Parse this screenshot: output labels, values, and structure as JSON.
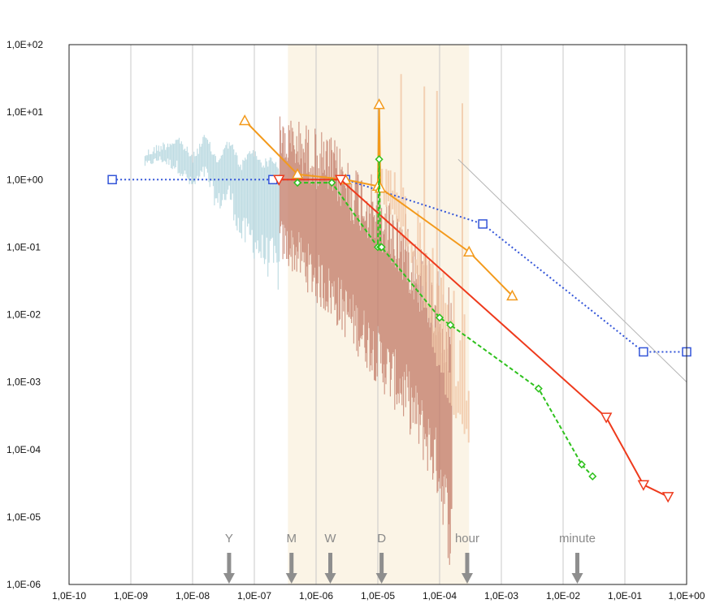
{
  "chart_data": {
    "type": "line",
    "title": "",
    "xlabel": "",
    "ylabel": "",
    "xscale": "log",
    "yscale": "log",
    "xlim": [
      1e-10,
      1
    ],
    "ylim": [
      1e-06,
      100
    ],
    "grid": {
      "x": true,
      "y": false
    },
    "legend": "none",
    "x_tick_labels": [
      "1,0E-10",
      "1,0E-09",
      "1,0E-08",
      "1,0E-07",
      "1,0E-06",
      "1,0E-05",
      "1,0E-04",
      "1,0E-03",
      "1,0E-02",
      "1,0E-01",
      "1,0E+00"
    ],
    "y_tick_labels": [
      "1,0E+02",
      "1,0E+01",
      "1,0E+00",
      "1,0E-01",
      "1,0E-02",
      "1,0E-03",
      "1,0E-04",
      "1,0E-05",
      "1,0E-06"
    ],
    "time_markers": [
      {
        "label": "Y",
        "x": 3.9e-08
      },
      {
        "label": "M",
        "x": 4e-07
      },
      {
        "label": "W",
        "x": 1.7e-06
      },
      {
        "label": "D",
        "x": 1.15e-05
      },
      {
        "label": "hour",
        "x": 0.00028
      },
      {
        "label": "minute",
        "x": 0.017
      }
    ],
    "shaded_bands": [
      {
        "x": [
          3.5e-07,
          0.0003
        ],
        "color": "#fbf4e6"
      }
    ],
    "reference_line": {
      "points": [
        [
          0.0002,
          2.0
        ],
        [
          1.0,
          0.001
        ]
      ],
      "color": "#b4b4b4"
    },
    "noise_traces": [
      {
        "color": "#a9d0da",
        "x_range": [
          1.7e-09,
          2.6e-07
        ],
        "upper": [
          [
            1.7e-09,
            2.8
          ],
          [
            3e-09,
            3.6
          ],
          [
            6e-09,
            4.6
          ],
          [
            1e-08,
            2.4
          ],
          [
            1.6e-08,
            5.0
          ],
          [
            2.5e-08,
            2.2
          ],
          [
            4e-08,
            4.4
          ],
          [
            6e-08,
            1.8
          ],
          [
            9e-08,
            3.2
          ],
          [
            1.4e-07,
            2.0
          ],
          [
            2e-07,
            2.4
          ],
          [
            2.6e-07,
            1.6
          ]
        ],
        "lower": [
          [
            1.7e-09,
            1.5
          ],
          [
            3e-09,
            1.8
          ],
          [
            6e-09,
            1.2
          ],
          [
            1e-08,
            0.65
          ],
          [
            1.6e-08,
            1.0
          ],
          [
            2.5e-08,
            0.32
          ],
          [
            4e-08,
            0.42
          ],
          [
            6e-08,
            0.1
          ],
          [
            9e-08,
            0.075
          ],
          [
            1.4e-07,
            0.04
          ],
          [
            2e-07,
            0.03
          ],
          [
            2.6e-07,
            0.018
          ]
        ]
      },
      {
        "color": "#c27a65",
        "x_range": [
          2.6e-07,
          0.00016
        ],
        "upper": [
          [
            2.6e-07,
            9.0
          ],
          [
            5e-07,
            8.0
          ],
          [
            1e-06,
            6.0
          ],
          [
            2e-06,
            4.0
          ],
          [
            4e-06,
            2.0
          ],
          [
            8e-06,
            1.2
          ],
          [
            1.5e-05,
            0.6
          ],
          [
            3e-05,
            0.3
          ],
          [
            6e-05,
            0.1
          ],
          [
            0.0001,
            0.05
          ],
          [
            0.00016,
            0.02
          ]
        ],
        "lower": [
          [
            2.6e-07,
            0.06
          ],
          [
            5e-07,
            0.035
          ],
          [
            1e-06,
            0.014
          ],
          [
            2e-06,
            0.007
          ],
          [
            4e-06,
            0.003
          ],
          [
            8e-06,
            0.0012
          ],
          [
            1.5e-05,
            0.0005
          ],
          [
            3e-05,
            0.0002
          ],
          [
            6e-05,
            5e-05
          ],
          [
            0.0001,
            1.5e-05
          ],
          [
            0.00016,
            1e-06
          ]
        ]
      },
      {
        "color": "#f1c9a9",
        "x_range": [
          1e-05,
          0.0003
        ],
        "upper": [
          [
            1e-05,
            60
          ],
          [
            2e-05,
            40
          ],
          [
            5e-05,
            25
          ],
          [
            0.0001,
            20
          ],
          [
            0.0003,
            12
          ]
        ],
        "lower": [
          [
            1e-05,
            0.5
          ],
          [
            2e-05,
            0.2
          ],
          [
            5e-05,
            0.02
          ],
          [
            0.0001,
            0.001
          ],
          [
            0.0003,
            0.0001
          ]
        ]
      }
    ],
    "series": [
      {
        "name": "",
        "color": "#3355d8",
        "style": "dotted",
        "marker": "square",
        "x": [
          5e-10,
          2e-07,
          3e-06,
          0.0005,
          0.2,
          1.0
        ],
        "y": [
          1.0,
          1.0,
          1.0,
          0.22,
          0.0028,
          0.0028
        ]
      },
      {
        "name": "",
        "color": "#f39a1c",
        "style": "solid",
        "marker": "triangle-up",
        "x": [
          7e-08,
          5e-07,
          3e-06,
          1e-05,
          1.05e-05,
          1.1e-05,
          0.0003,
          0.0015
        ],
        "y": [
          7.5,
          1.2,
          1.0,
          0.8,
          13.0,
          0.75,
          0.085,
          0.019
        ]
      },
      {
        "name": "",
        "color": "#ee3a1c",
        "style": "solid",
        "marker": "triangle-down",
        "x": [
          2.5e-07,
          2.5e-06,
          0.05,
          0.2,
          0.5
        ],
        "y": [
          1.0,
          1.0,
          0.0003,
          3e-05,
          2e-05
        ]
      },
      {
        "name": "",
        "color": "#2ec11d",
        "style": "dashed",
        "marker": "diamond",
        "x": [
          5e-07,
          1.8e-06,
          1e-05,
          1.05e-05,
          1.1e-05,
          1.15e-05,
          0.0001,
          0.00015,
          0.004,
          0.02,
          0.03
        ],
        "y": [
          0.9,
          0.9,
          0.1,
          2.0,
          0.1,
          0.1,
          0.009,
          0.007,
          0.0008,
          6e-05,
          4e-05
        ]
      }
    ]
  }
}
